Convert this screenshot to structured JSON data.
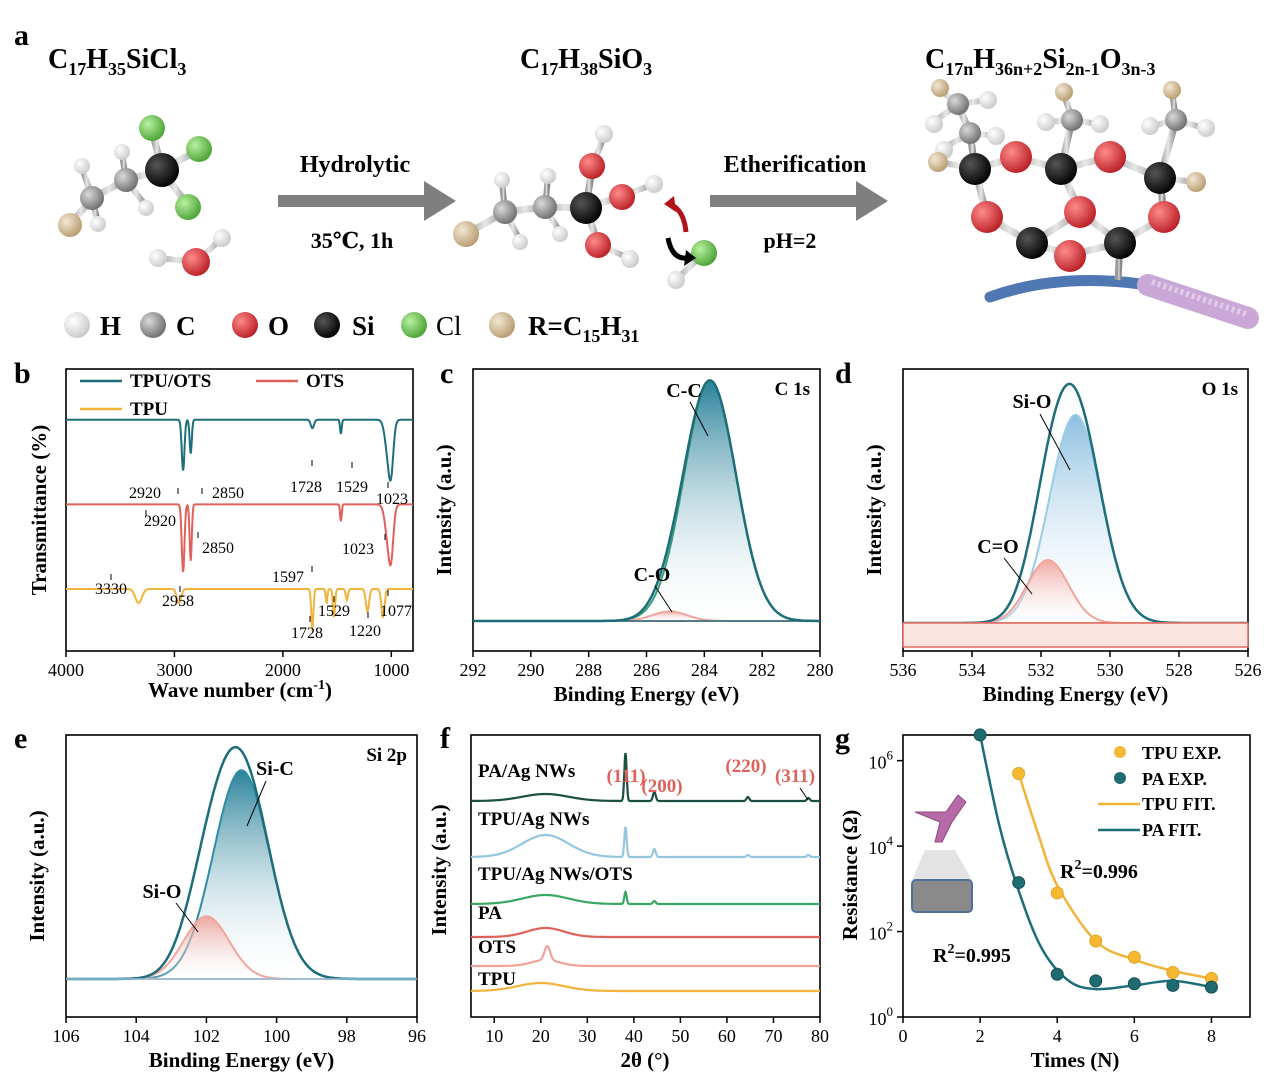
{
  "colors": {
    "teal": "#1d6e7a",
    "teal_fill": "#2f8ea5",
    "teal_light": "#8fc3e0",
    "red": "#e0605a",
    "pink": "#f0a39b",
    "yellow": "#f0b43c",
    "green": "#3aa865",
    "dark_green": "#1b4f44",
    "light_blue": "#95c6df",
    "grey_arrow": "#808080",
    "si": "#0a0a0a",
    "o": "#d9353a",
    "cl": "#6cc34c",
    "h": "#ececec",
    "c": "#9a9a9a",
    "r": "#d8c3a0",
    "fiber": "#4f77b2",
    "fiber_tip": "#c9a8d8"
  },
  "panel_a": {
    "tag": "a",
    "formula1": {
      "base": [
        [
          "C",
          ""
        ],
        [
          "17",
          "sub"
        ],
        [
          "H",
          ""
        ],
        [
          "35",
          "sub"
        ],
        [
          "SiCl",
          ""
        ],
        [
          "3",
          "sub"
        ]
      ]
    },
    "formula2": {
      "base": [
        [
          "C",
          ""
        ],
        [
          "17",
          "sub"
        ],
        [
          "H",
          ""
        ],
        [
          "38",
          "sub"
        ],
        [
          "SiO",
          ""
        ],
        [
          "3",
          "sub"
        ]
      ]
    },
    "formula3": {
      "base": [
        [
          "C",
          ""
        ],
        [
          "17n",
          "sub"
        ],
        [
          "H",
          ""
        ],
        [
          "36n+2",
          "sub"
        ],
        [
          "Si",
          ""
        ],
        [
          "2n-1",
          "sub"
        ],
        [
          "O",
          ""
        ],
        [
          "3n-3",
          "sub"
        ]
      ]
    },
    "arrow1_top": "Hydrolytic",
    "arrow1_bottom": "35℃, 1h",
    "arrow2_top": "Etherification",
    "arrow2_bottom": "pH=2",
    "legend": [
      "H",
      "C",
      "O",
      "Si",
      "Cl",
      "R=C"
    ],
    "legend_r_sub": "15",
    "legend_r_h": "H",
    "legend_r_sub2": "31"
  },
  "chart_data": [
    {
      "panel": "b",
      "type": "line",
      "title": "",
      "xlabel": "Wave number (cm",
      "xlabel_sup": "-1",
      "xlabel_close": ")",
      "ylabel": "Transmittance (%)",
      "xlim": [
        4000,
        800
      ],
      "xticks": [
        "4000",
        "3000",
        "2000",
        "1000"
      ],
      "xtick_values": [
        4000,
        3000,
        2000,
        1000
      ],
      "legend": [
        "TPU/OTS",
        "OTS",
        "TPU"
      ],
      "series": [
        {
          "name": "TPU/OTS",
          "baseline": 0.82,
          "dips": [
            [
              2920,
              0.18,
              25
            ],
            [
              2850,
              0.12,
              20
            ],
            [
              1728,
              0.03,
              30
            ],
            [
              1465,
              0.05,
              15
            ],
            [
              1023,
              0.14,
              60
            ],
            [
              1000,
              0.1,
              40
            ]
          ]
        },
        {
          "name": "OTS",
          "baseline": 0.52,
          "dips": [
            [
              2920,
              0.24,
              25
            ],
            [
              2850,
              0.2,
              20
            ],
            [
              1465,
              0.06,
              15
            ],
            [
              1023,
              0.14,
              60
            ],
            [
              1000,
              0.1,
              40
            ]
          ]
        },
        {
          "name": "TPU",
          "baseline": 0.22,
          "dips": [
            [
              3330,
              0.05,
              60
            ],
            [
              2958,
              0.05,
              40
            ],
            [
              1728,
              0.14,
              20
            ],
            [
              1597,
              0.05,
              15
            ],
            [
              1529,
              0.1,
              20
            ],
            [
              1410,
              0.04,
              20
            ],
            [
              1220,
              0.08,
              30
            ],
            [
              1077,
              0.1,
              30
            ]
          ]
        }
      ],
      "annotations": [
        "2920",
        "2850",
        "1728",
        "1529",
        "1023",
        "2920",
        "2850",
        "1023",
        "3330",
        "2958",
        "1597",
        "1529",
        "1728",
        "1220",
        "1077"
      ]
    },
    {
      "panel": "c",
      "type": "area",
      "xlabel": "Binding Energy (eV)",
      "ylabel": "Intensity (a.u.)",
      "xlim": [
        292,
        280
      ],
      "xticks": [
        "292",
        "290",
        "288",
        "286",
        "284",
        "282",
        "280"
      ],
      "xtick_values": [
        292,
        290,
        288,
        286,
        284,
        282,
        280
      ],
      "corner_label": "C 1s",
      "peaks": [
        {
          "name": "C-C",
          "center": 283.8,
          "height": 1.0,
          "width": 0.9
        },
        {
          "name": "C-O",
          "center": 285.2,
          "height": 0.04,
          "width": 0.6
        }
      ]
    },
    {
      "panel": "d",
      "type": "area",
      "xlabel": "Binding Energy (eV)",
      "ylabel": "Intensity (a.u.)",
      "xlim": [
        536,
        526
      ],
      "xticks": [
        "536",
        "534",
        "532",
        "530",
        "528",
        "526"
      ],
      "xtick_values": [
        536,
        534,
        532,
        530,
        528,
        526
      ],
      "corner_label": "O 1s",
      "peaks": [
        {
          "name": "Si-O",
          "center": 531.0,
          "height": 0.86,
          "width": 0.75
        },
        {
          "name": "C=O",
          "center": 531.8,
          "height": 0.26,
          "width": 0.6
        }
      ]
    },
    {
      "panel": "e",
      "type": "area",
      "xlabel": "Binding Energy (eV)",
      "ylabel": "Intensity (a.u.)",
      "xlim": [
        106,
        96
      ],
      "xticks": [
        "106",
        "104",
        "102",
        "100",
        "98",
        "96"
      ],
      "xtick_values": [
        106,
        104,
        102,
        100,
        98,
        96
      ],
      "corner_label": "Si 2p",
      "peaks": [
        {
          "name": "Si-C",
          "center": 101.0,
          "height": 0.9,
          "width": 0.8
        },
        {
          "name": "Si-O",
          "center": 102.0,
          "height": 0.27,
          "width": 0.65
        }
      ]
    },
    {
      "panel": "f",
      "type": "line",
      "xlabel": "2θ (°)",
      "ylabel": "Intensity (a.u.)",
      "xlim": [
        5,
        80
      ],
      "xticks": [
        "10",
        "20",
        "30",
        "40",
        "50",
        "60",
        "70",
        "80"
      ],
      "xtick_values": [
        10,
        20,
        30,
        40,
        50,
        60,
        70,
        80
      ],
      "series": [
        "PA/Ag NWs",
        "TPU/Ag NWs",
        "TPU/Ag NWs/OTS",
        "PA",
        "OTS",
        "TPU"
      ],
      "peak_labels": [
        "(111)",
        "(200)",
        "(220)",
        "(311)"
      ]
    },
    {
      "panel": "g",
      "type": "scatter",
      "xlabel": "Times (N)",
      "ylabel": "Resistance (Ω)",
      "xlim": [
        0,
        9
      ],
      "ylim_log": [
        0,
        6.6
      ],
      "xticks": [
        "0",
        "2",
        "4",
        "6",
        "8"
      ],
      "xtick_values": [
        0,
        2,
        4,
        6,
        8
      ],
      "yticks": [
        [
          "10",
          "0"
        ],
        [
          "10",
          "2"
        ],
        [
          "10",
          "4"
        ],
        [
          "10",
          "6"
        ]
      ],
      "ytick_exponents": [
        0,
        2,
        4,
        6
      ],
      "legend": [
        "TPU EXP.",
        "PA  EXP.",
        "TPU FIT.",
        "PA  FIT."
      ],
      "r2_tpu": "R",
      "r2_tpu_value": "=0.996",
      "r2_pa": "R",
      "r2_pa_value": "=0.995",
      "r2_sup": "2",
      "series": [
        {
          "name": "TPU EXP.",
          "x": [
            3,
            4,
            5,
            6,
            7,
            8
          ],
          "y": [
            500000,
            800,
            60,
            25,
            11,
            8
          ]
        },
        {
          "name": "PA EXP.",
          "x": [
            2,
            3,
            4,
            5,
            6,
            7,
            8
          ],
          "y": [
            4000000,
            1400,
            10,
            7,
            6,
            5.5,
            5
          ]
        }
      ]
    }
  ]
}
